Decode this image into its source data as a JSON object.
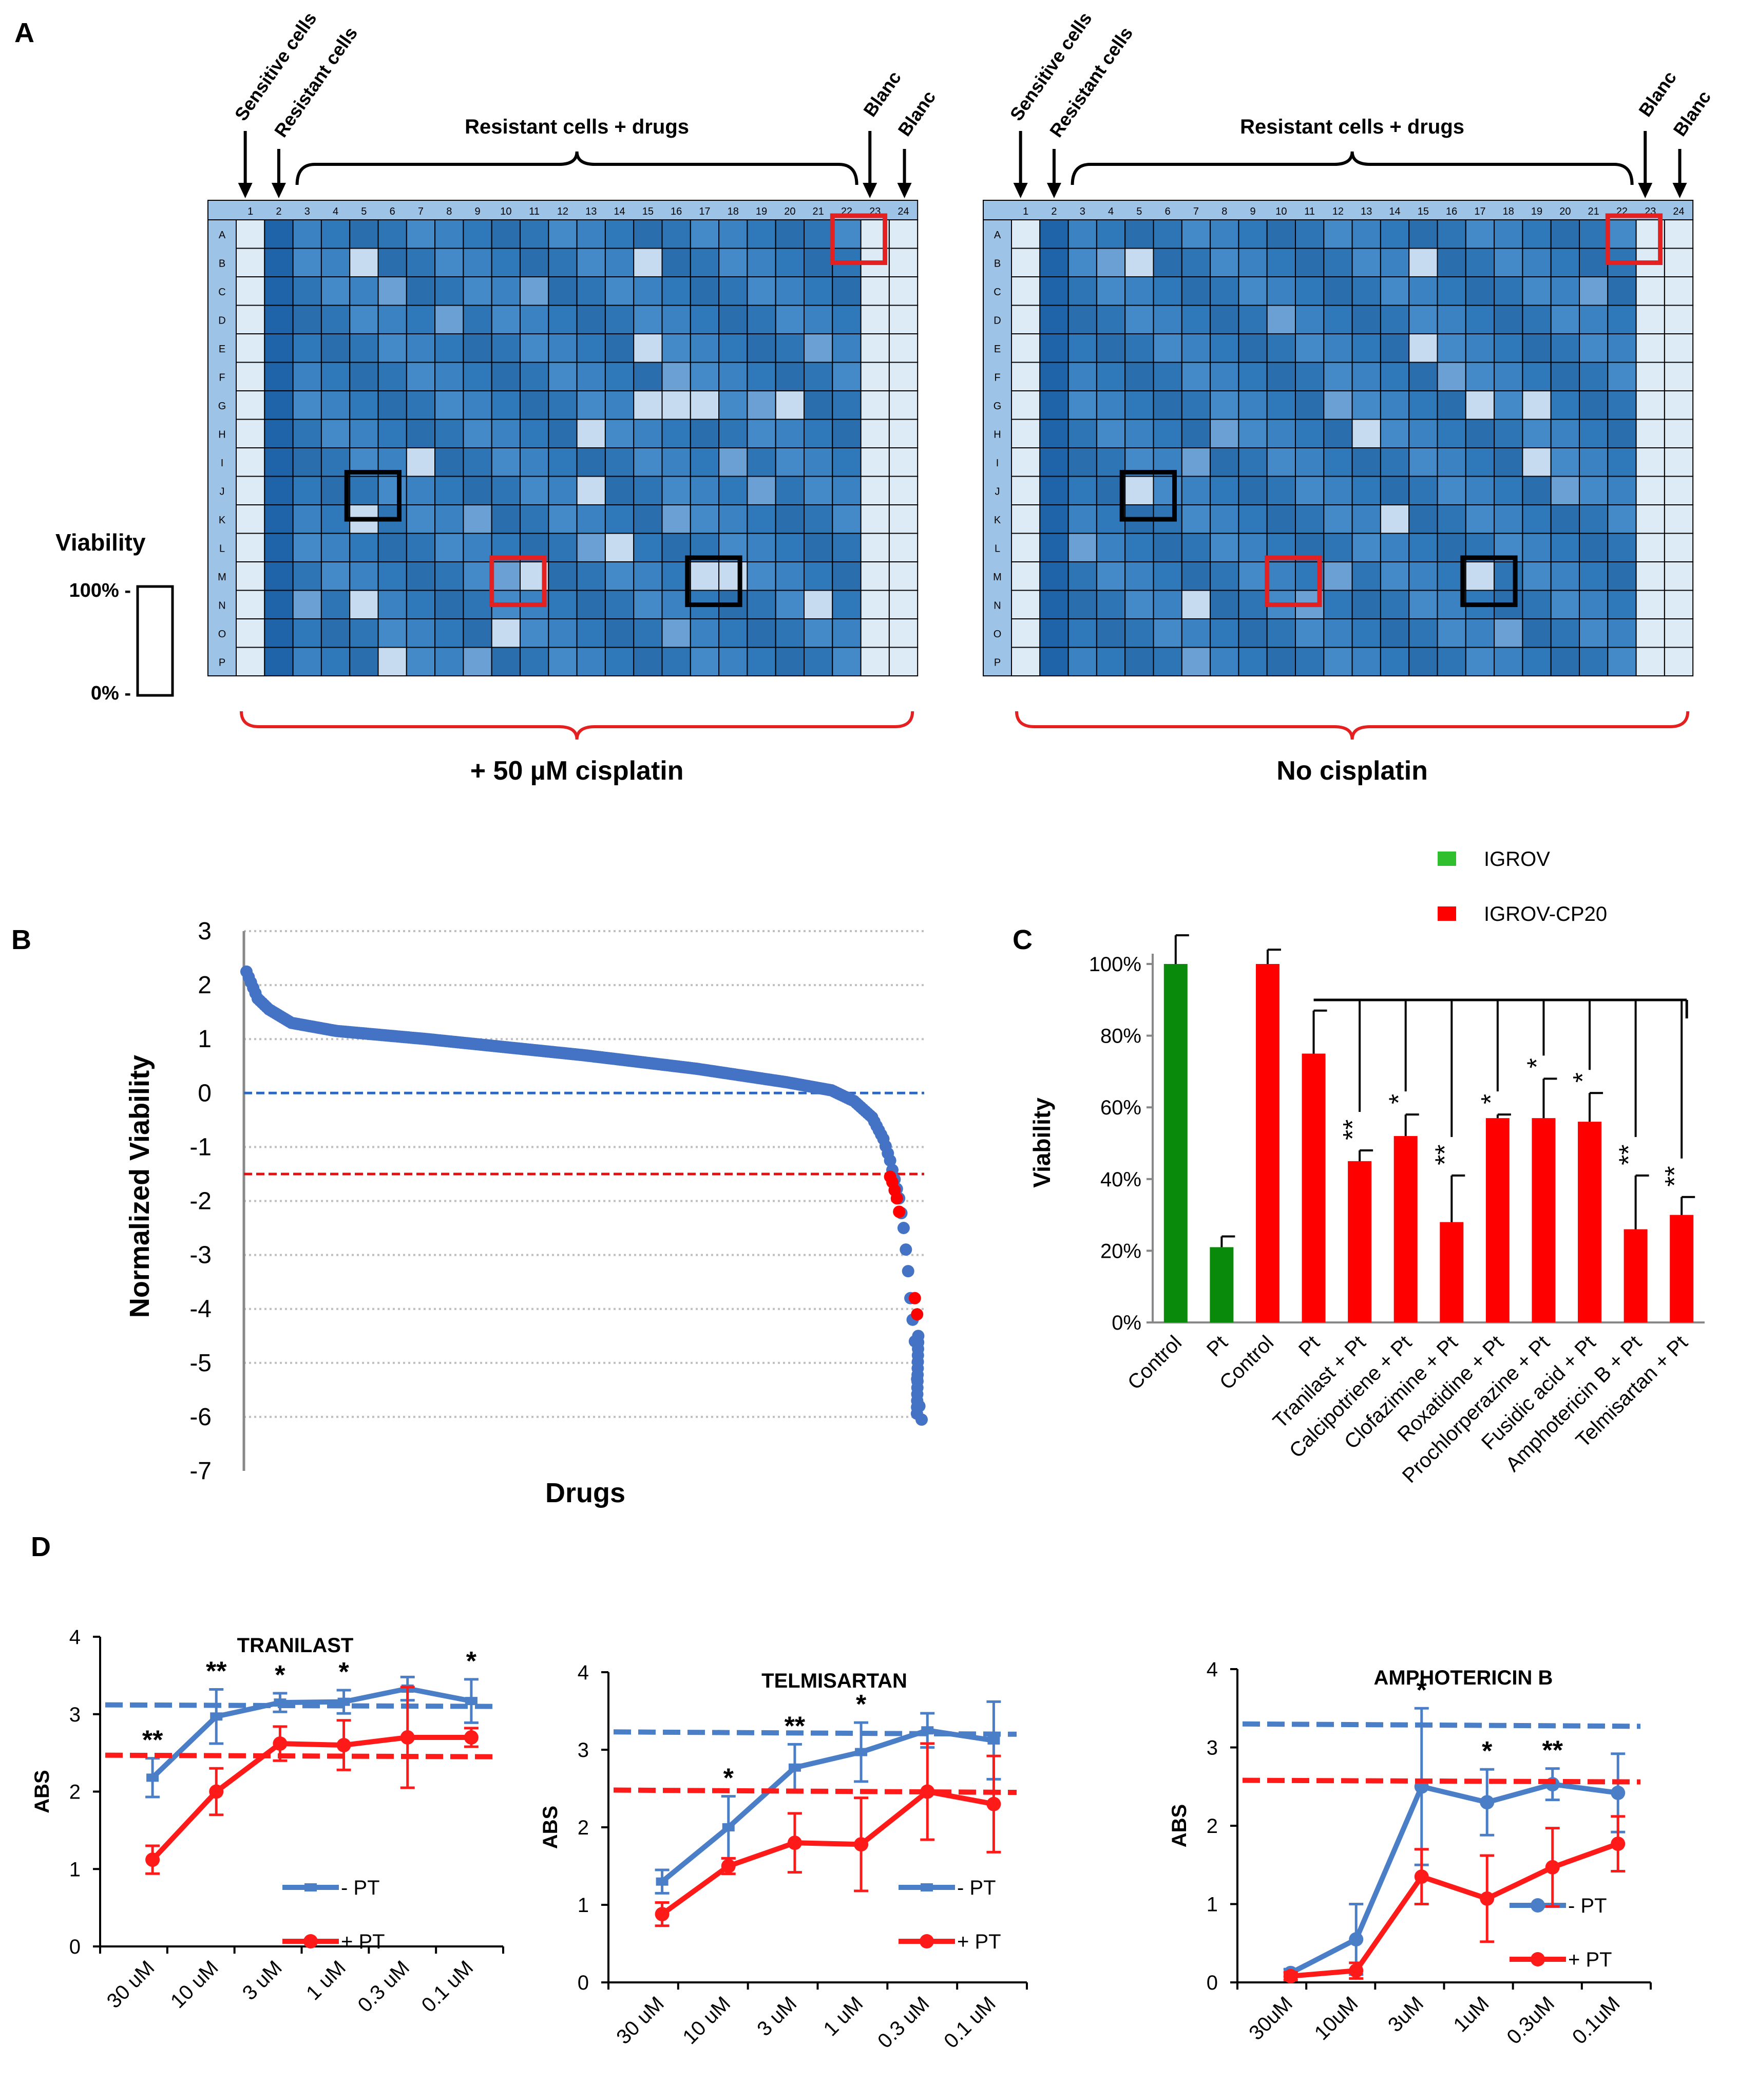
{
  "panel_letters": {
    "a": "A",
    "b": "B",
    "c": "C",
    "d": "D"
  },
  "colors": {
    "plate_blue": "#2e75b6",
    "plate_light": "#ddebf7",
    "plate_header": "#9dc3e6",
    "highlight_red": "#e52020",
    "highlight_black": "#000000",
    "igrov_green": "#0a8a0a",
    "cp20_red": "#ff0000",
    "series_blue": "#4a7ec7",
    "series_red": "#ff1a1a",
    "grid_gray": "#bfbfbf"
  },
  "panel_a": {
    "columns": [
      "1",
      "2",
      "3",
      "4",
      "5",
      "6",
      "7",
      "8",
      "9",
      "10",
      "11",
      "12",
      "13",
      "14",
      "15",
      "16",
      "17",
      "18",
      "19",
      "20",
      "21",
      "22",
      "23",
      "24"
    ],
    "rows": [
      "A",
      "B",
      "C",
      "D",
      "E",
      "F",
      "G",
      "H",
      "I",
      "J",
      "K",
      "L",
      "M",
      "N",
      "O",
      "P"
    ],
    "label_sensitive": "Sensitive cells",
    "label_resistant": "Resistant cells",
    "label_drugs": "Resistant cells + drugs",
    "label_blanc": "Blanc",
    "legend": {
      "title": "Viability",
      "top": "100% -",
      "bottom": "0% -"
    },
    "plates": [
      {
        "caption": "+ 50 µM cisplatin",
        "light_wells": [
          [
            1,
            14
          ],
          [
            1,
            4
          ],
          [
            6,
            16
          ],
          [
            6,
            14
          ],
          [
            6,
            19
          ],
          [
            8,
            6
          ],
          [
            7,
            12
          ],
          [
            9,
            12
          ],
          [
            12,
            17
          ],
          [
            12,
            10
          ],
          [
            11,
            13
          ],
          [
            14,
            9
          ],
          [
            15,
            5
          ],
          [
            13,
            4
          ],
          [
            13,
            20
          ],
          [
            10,
            4
          ],
          [
            12,
            16
          ],
          [
            6,
            15
          ],
          [
            4,
            14
          ]
        ],
        "mid_wells": [
          [
            1,
            4
          ],
          [
            2,
            10
          ],
          [
            3,
            7
          ],
          [
            5,
            15
          ],
          [
            8,
            17
          ],
          [
            10,
            8
          ],
          [
            11,
            12
          ],
          [
            12,
            9
          ],
          [
            13,
            2
          ],
          [
            14,
            15
          ],
          [
            15,
            8
          ],
          [
            9,
            18
          ],
          [
            4,
            20
          ],
          [
            2,
            5
          ],
          [
            10,
            15
          ],
          [
            6,
            18
          ]
        ],
        "red_boxes": [
          [
            0,
            21
          ],
          [
            12,
            9
          ]
        ],
        "black_boxes": [
          [
            9,
            4
          ],
          [
            12,
            16
          ]
        ]
      },
      {
        "caption": "No cisplatin",
        "light_wells": [
          [
            1,
            14
          ],
          [
            1,
            4
          ],
          [
            6,
            16
          ],
          [
            6,
            18
          ],
          [
            7,
            12
          ],
          [
            8,
            18
          ],
          [
            9,
            4
          ],
          [
            12,
            16
          ],
          [
            10,
            13
          ],
          [
            4,
            14
          ],
          [
            13,
            6
          ]
        ],
        "mid_wells": [
          [
            1,
            3
          ],
          [
            5,
            15
          ],
          [
            7,
            7
          ],
          [
            8,
            6
          ],
          [
            12,
            11
          ],
          [
            13,
            10
          ],
          [
            15,
            6
          ],
          [
            3,
            9
          ],
          [
            9,
            19
          ],
          [
            11,
            2
          ],
          [
            14,
            17
          ],
          [
            2,
            20
          ],
          [
            6,
            11
          ]
        ],
        "red_boxes": [
          [
            0,
            21
          ],
          [
            12,
            9
          ]
        ],
        "black_boxes": [
          [
            9,
            4
          ],
          [
            12,
            16
          ]
        ]
      }
    ]
  },
  "chart_data": [
    {
      "panel": "B",
      "type": "scatter",
      "title": "",
      "xlabel": "Drugs",
      "ylabel": "Normalized Viability",
      "ylim": [
        -7,
        3
      ],
      "yticks": [
        "3",
        "2",
        "1",
        "0",
        "-1",
        "-2",
        "-3",
        "-4",
        "-5",
        "-6",
        "-7"
      ],
      "grid": "horizontal dotted",
      "reference_lines": [
        {
          "y": 0,
          "color": "blue"
        },
        {
          "y": -1.5,
          "color": "red"
        }
      ],
      "n_drugs": 300,
      "curve_keypoints": [
        [
          0,
          2.25
        ],
        [
          2,
          2.05
        ],
        [
          5,
          1.75
        ],
        [
          10,
          1.55
        ],
        [
          20,
          1.3
        ],
        [
          40,
          1.15
        ],
        [
          80,
          1.0
        ],
        [
          150,
          0.7
        ],
        [
          200,
          0.45
        ],
        [
          240,
          0.2
        ],
        [
          260,
          0.05
        ],
        [
          270,
          -0.15
        ],
        [
          278,
          -0.45
        ],
        [
          283,
          -0.85
        ],
        [
          286,
          -1.25
        ],
        [
          288,
          -1.6
        ],
        [
          290,
          -1.95
        ],
        [
          292,
          -2.5
        ],
        [
          294,
          -3.3
        ],
        [
          295,
          -3.8
        ],
        [
          297,
          -4.6
        ],
        [
          298,
          -5.3
        ],
        [
          299,
          -5.8
        ],
        [
          300,
          -6.05
        ]
      ],
      "highlighted_points": [
        [
          286,
          -1.55
        ],
        [
          287,
          -1.65
        ],
        [
          288,
          -1.8
        ],
        [
          289,
          -1.95
        ],
        [
          290,
          -2.2
        ],
        [
          297,
          -3.8
        ],
        [
          298,
          -4.1
        ]
      ]
    },
    {
      "panel": "C",
      "type": "bar",
      "title": "",
      "xlabel": "",
      "ylabel": "Viability",
      "ylim": [
        0,
        100
      ],
      "ytick_labels": [
        "0%",
        "20%",
        "40%",
        "60%",
        "80%",
        "100%"
      ],
      "legend": [
        {
          "name": "IGROV",
          "color": "green"
        },
        {
          "name": "IGROV-CP20",
          "color": "red"
        }
      ],
      "categories": [
        "Control",
        "Pt",
        "Control",
        "Pt",
        "Tranilast + Pt",
        "Calcipotriene + Pt",
        "Clofazimine + Pt",
        "Roxatidine + Pt",
        "Prochlorperazine + Pt",
        "Fusidic acid + Pt",
        "Amphotericin B + Pt",
        "Telmisartan + Pt"
      ],
      "groups": [
        "IGROV",
        "IGROV",
        "IGROV-CP20",
        "IGROV-CP20",
        "IGROV-CP20",
        "IGROV-CP20",
        "IGROV-CP20",
        "IGROV-CP20",
        "IGROV-CP20",
        "IGROV-CP20",
        "IGROV-CP20",
        "IGROV-CP20"
      ],
      "values": [
        100,
        21,
        100,
        75,
        45,
        52,
        28,
        57,
        57,
        56,
        26,
        30
      ],
      "errors": [
        8,
        3,
        4,
        12,
        3,
        6,
        13,
        1,
        11,
        8,
        15,
        5
      ],
      "significance": [
        "",
        "",
        "",
        "",
        "**",
        "*",
        "**",
        "*",
        "*",
        "*",
        "**",
        "**"
      ]
    },
    {
      "panel": "D",
      "type": "line",
      "title": "TRANILAST",
      "xlabel": "",
      "ylabel": "ABS",
      "ylim": [
        0,
        4
      ],
      "yticks": [
        "0",
        "1",
        "2",
        "3",
        "4"
      ],
      "categories": [
        "30 uM",
        "10 uM",
        "3 uM",
        "1 uM",
        "0.3 uM",
        "0.1 uM"
      ],
      "series": [
        {
          "name": "- PT",
          "color": "blue",
          "values": [
            2.18,
            2.97,
            3.15,
            3.16,
            3.33,
            3.17
          ],
          "errors": [
            0.25,
            0.35,
            0.12,
            0.15,
            0.15,
            0.28
          ],
          "baseline": [
            3.12,
            3.1
          ]
        },
        {
          "name": "+ PT",
          "color": "red",
          "values": [
            1.12,
            2.0,
            2.62,
            2.6,
            2.7,
            2.7
          ],
          "errors": [
            0.18,
            0.3,
            0.22,
            0.32,
            0.65,
            0.12
          ],
          "baseline": [
            2.47,
            2.45
          ]
        }
      ],
      "significance": [
        "**",
        "**",
        "*",
        "*",
        "",
        "*"
      ]
    },
    {
      "panel": "D",
      "type": "line",
      "title": "TELMISARTAN",
      "xlabel": "",
      "ylabel": "ABS",
      "ylim": [
        0,
        4
      ],
      "yticks": [
        "0",
        "1",
        "2",
        "3",
        "4"
      ],
      "categories": [
        "30 uM",
        "10 uM",
        "3 uM",
        "1 uM",
        "0.3 uM",
        "0.1 uM"
      ],
      "series": [
        {
          "name": "- PT",
          "color": "blue",
          "values": [
            1.3,
            2.0,
            2.77,
            2.97,
            3.25,
            3.12
          ],
          "errors": [
            0.15,
            0.4,
            0.3,
            0.38,
            0.22,
            0.5
          ],
          "baseline": [
            3.23,
            3.2
          ]
        },
        {
          "name": "+ PT",
          "color": "red",
          "values": [
            0.88,
            1.5,
            1.8,
            1.78,
            2.46,
            2.3
          ],
          "errors": [
            0.15,
            0.1,
            0.38,
            0.6,
            0.62,
            0.62
          ],
          "baseline": [
            2.48,
            2.45
          ]
        }
      ],
      "significance": [
        "",
        "*",
        "**",
        "*",
        "",
        ""
      ]
    },
    {
      "panel": "D",
      "type": "line",
      "title": "AMPHOTERICIN B",
      "xlabel": "",
      "ylabel": "ABS",
      "ylim": [
        0,
        4
      ],
      "yticks": [
        "0",
        "1",
        "2",
        "3",
        "4"
      ],
      "categories": [
        "30uM",
        "10uM",
        "3uM",
        "1uM",
        "0.3uM",
        "0.1uM"
      ],
      "series": [
        {
          "name": "- PT",
          "color": "blue",
          "values": [
            0.12,
            0.55,
            2.5,
            2.3,
            2.53,
            2.42
          ],
          "errors": [
            0.05,
            0.45,
            1.0,
            0.42,
            0.2,
            0.5
          ],
          "baseline": [
            3.3,
            3.27
          ]
        },
        {
          "name": "+ PT",
          "color": "red",
          "values": [
            0.08,
            0.15,
            1.35,
            1.07,
            1.47,
            1.77
          ],
          "errors": [
            0.05,
            0.1,
            0.35,
            0.55,
            0.5,
            0.35
          ],
          "baseline": [
            2.58,
            2.56
          ]
        }
      ],
      "significance": [
        "",
        "",
        "*",
        "*",
        "**",
        ""
      ]
    }
  ]
}
